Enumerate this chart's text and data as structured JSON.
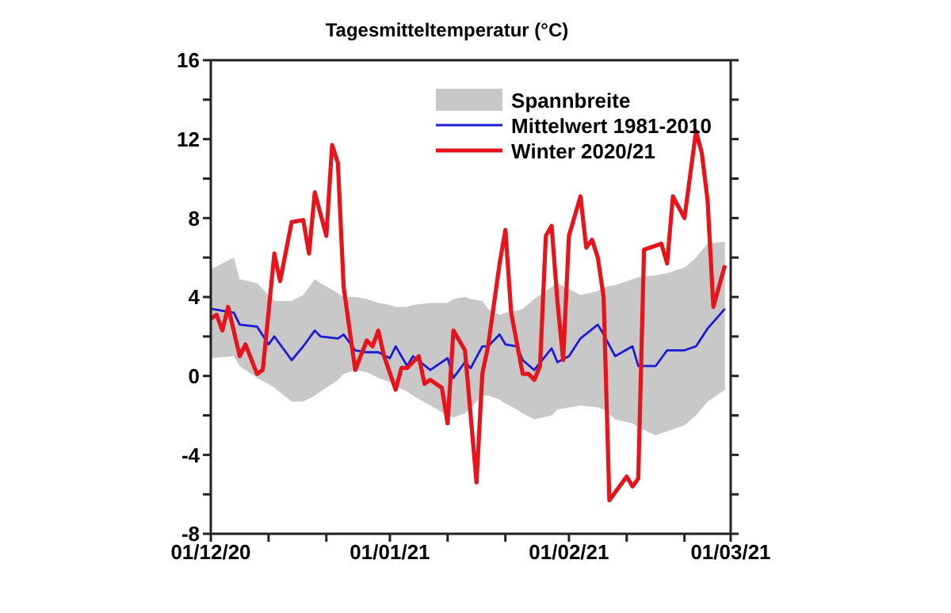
{
  "chart_data": {
    "type": "line",
    "title": "Tagesmitteltemperatur (°C)",
    "annotations": [
      "Spannbreite"
    ],
    "series": [
      {
        "name": "Mittelwert 1981-2010",
        "color": "#1c1cd6",
        "x": [
          "2020-12-01",
          "2020-12-05",
          "2020-12-06",
          "2020-12-09",
          "2020-12-11",
          "2020-12-12",
          "2020-12-15",
          "2020-12-17",
          "2020-12-19",
          "2020-12-20",
          "2020-12-23",
          "2020-12-24",
          "2020-12-26",
          "2020-12-28",
          "2020-12-30",
          "2021-01-01",
          "2021-01-02",
          "2021-01-04",
          "2021-01-05",
          "2021-01-08",
          "2021-01-11",
          "2021-01-12",
          "2021-01-14",
          "2021-01-15",
          "2021-01-17",
          "2021-01-18",
          "2021-01-20",
          "2021-01-21",
          "2021-01-23",
          "2021-01-24",
          "2021-01-26",
          "2021-01-29",
          "2021-01-30",
          "2021-02-01",
          "2021-02-03",
          "2021-02-06",
          "2021-02-07",
          "2021-02-09",
          "2021-02-12",
          "2021-02-13",
          "2021-02-16",
          "2021-02-18",
          "2021-02-21",
          "2021-02-23",
          "2021-02-25",
          "2021-02-28"
        ],
        "values": [
          3.4,
          3.2,
          2.6,
          2.5,
          1.6,
          2.0,
          0.8,
          1.5,
          2.3,
          2.0,
          1.9,
          2.1,
          1.3,
          1.2,
          1.2,
          0.9,
          1.5,
          0.5,
          1.0,
          0.3,
          0.9,
          -0.1,
          0.7,
          0.4,
          1.5,
          1.5,
          2.1,
          1.6,
          1.5,
          0.8,
          0.3,
          1.4,
          0.7,
          1.0,
          1.9,
          2.6,
          2.1,
          1.0,
          1.5,
          0.5,
          0.5,
          1.3,
          1.3,
          1.5,
          2.4,
          3.4
        ],
        "lower": [
          0.9,
          1.0,
          0.5,
          -0.1,
          -0.4,
          -0.6,
          -1.3,
          -1.3,
          -1.0,
          -0.8,
          -0.2,
          0.1,
          0.3,
          0.2,
          -0.1,
          -0.3,
          -0.5,
          -0.8,
          -1.0,
          -1.5,
          -2.0,
          -2.1,
          -1.9,
          -1.6,
          -1.0,
          -1.0,
          -1.2,
          -1.4,
          -1.7,
          -1.9,
          -2.2,
          -2.0,
          -1.7,
          -1.6,
          -1.5,
          -1.6,
          -1.7,
          -2.2,
          -2.4,
          -2.6,
          -3.0,
          -2.8,
          -2.5,
          -2.0,
          -1.3,
          -0.7
        ],
        "upper": [
          5.4,
          6.0,
          4.9,
          4.7,
          4.1,
          3.8,
          3.8,
          4.1,
          4.9,
          4.7,
          4.2,
          4.0,
          4.0,
          3.9,
          3.7,
          3.6,
          3.5,
          3.5,
          3.6,
          3.7,
          3.7,
          3.9,
          4.0,
          3.9,
          3.8,
          3.4,
          3.1,
          3.2,
          3.3,
          3.4,
          3.9,
          4.5,
          4.7,
          4.4,
          4.1,
          4.3,
          4.5,
          4.6,
          4.9,
          5.0,
          5.1,
          5.2,
          5.5,
          6.0,
          6.7,
          6.8
        ]
      },
      {
        "name": "Winter 2020/21",
        "color": "#e8141c",
        "x": [
          "2020-12-01",
          "2020-12-02",
          "2020-12-03",
          "2020-12-04",
          "2020-12-06",
          "2020-12-07",
          "2020-12-09",
          "2020-12-10",
          "2020-12-12",
          "2020-12-13",
          "2020-12-15",
          "2020-12-17",
          "2020-12-18",
          "2020-12-19",
          "2020-12-21",
          "2020-12-22",
          "2020-12-23",
          "2020-12-24",
          "2020-12-26",
          "2020-12-28",
          "2020-12-29",
          "2020-12-30",
          "2020-12-31",
          "2021-01-02",
          "2021-01-03",
          "2021-01-04",
          "2021-01-06",
          "2021-01-07",
          "2021-01-08",
          "2021-01-10",
          "2021-01-11",
          "2021-01-12",
          "2021-01-14",
          "2021-01-16",
          "2021-01-17",
          "2021-01-18",
          "2021-01-20",
          "2021-01-21",
          "2021-01-22",
          "2021-01-24",
          "2021-01-25",
          "2021-01-26",
          "2021-01-27",
          "2021-01-28",
          "2021-01-29",
          "2021-01-30",
          "2021-01-31",
          "2021-02-01",
          "2021-02-03",
          "2021-02-04",
          "2021-02-05",
          "2021-02-06",
          "2021-02-07",
          "2021-02-08",
          "2021-02-11",
          "2021-02-12",
          "2021-02-13",
          "2021-02-14",
          "2021-02-17",
          "2021-02-18",
          "2021-02-19",
          "2021-02-21",
          "2021-02-23",
          "2021-02-24",
          "2021-02-25",
          "2021-02-26",
          "2021-02-28"
        ],
        "values": [
          2.9,
          3.1,
          2.3,
          3.5,
          1.0,
          1.6,
          0.1,
          0.3,
          6.2,
          4.8,
          7.8,
          7.9,
          6.2,
          9.3,
          7.1,
          11.7,
          10.8,
          4.5,
          0.3,
          1.8,
          1.5,
          2.3,
          1.0,
          -0.7,
          0.4,
          0.4,
          1.0,
          -0.4,
          -0.2,
          -0.6,
          -2.4,
          2.3,
          1.3,
          -5.4,
          0.1,
          1.5,
          5.7,
          7.4,
          3.2,
          0.1,
          0.1,
          -0.2,
          0.5,
          7.1,
          7.6,
          3.8,
          0.8,
          7.1,
          9.1,
          6.5,
          6.9,
          6.0,
          4.0,
          -6.3,
          -5.1,
          -5.6,
          -5.2,
          6.4,
          6.7,
          5.7,
          9.1,
          8.0,
          12.4,
          11.3,
          8.9,
          3.5,
          5.6
        ]
      }
    ],
    "xlim": [
      "2020-12-01",
      "2021-03-01"
    ],
    "xticks": [
      {
        "value": "2020-12-01",
        "label": "01/12/20"
      },
      {
        "value": "2020-12-11",
        "label": null
      },
      {
        "value": "2020-12-21",
        "label": null
      },
      {
        "value": "2021-01-01",
        "label": "01/01/21"
      },
      {
        "value": "2021-01-11",
        "label": null
      },
      {
        "value": "2021-01-21",
        "label": null
      },
      {
        "value": "2021-02-01",
        "label": "01/02/21"
      },
      {
        "value": "2021-02-11",
        "label": null
      },
      {
        "value": "2021-02-21",
        "label": null
      },
      {
        "value": "2021-03-01",
        "label": "01/03/21"
      }
    ],
    "ylim": [
      -8,
      16
    ],
    "yticks": [
      -8,
      {
        "value": -6,
        "label": null
      },
      -4,
      {
        "value": -2,
        "label": null
      },
      0,
      {
        "value": 2,
        "label": null
      },
      4,
      {
        "value": 6,
        "label": null
      },
      8,
      {
        "value": 10,
        "label": null
      },
      12,
      {
        "value": 14,
        "label": null
      },
      16
    ],
    "legend": "top right"
  }
}
